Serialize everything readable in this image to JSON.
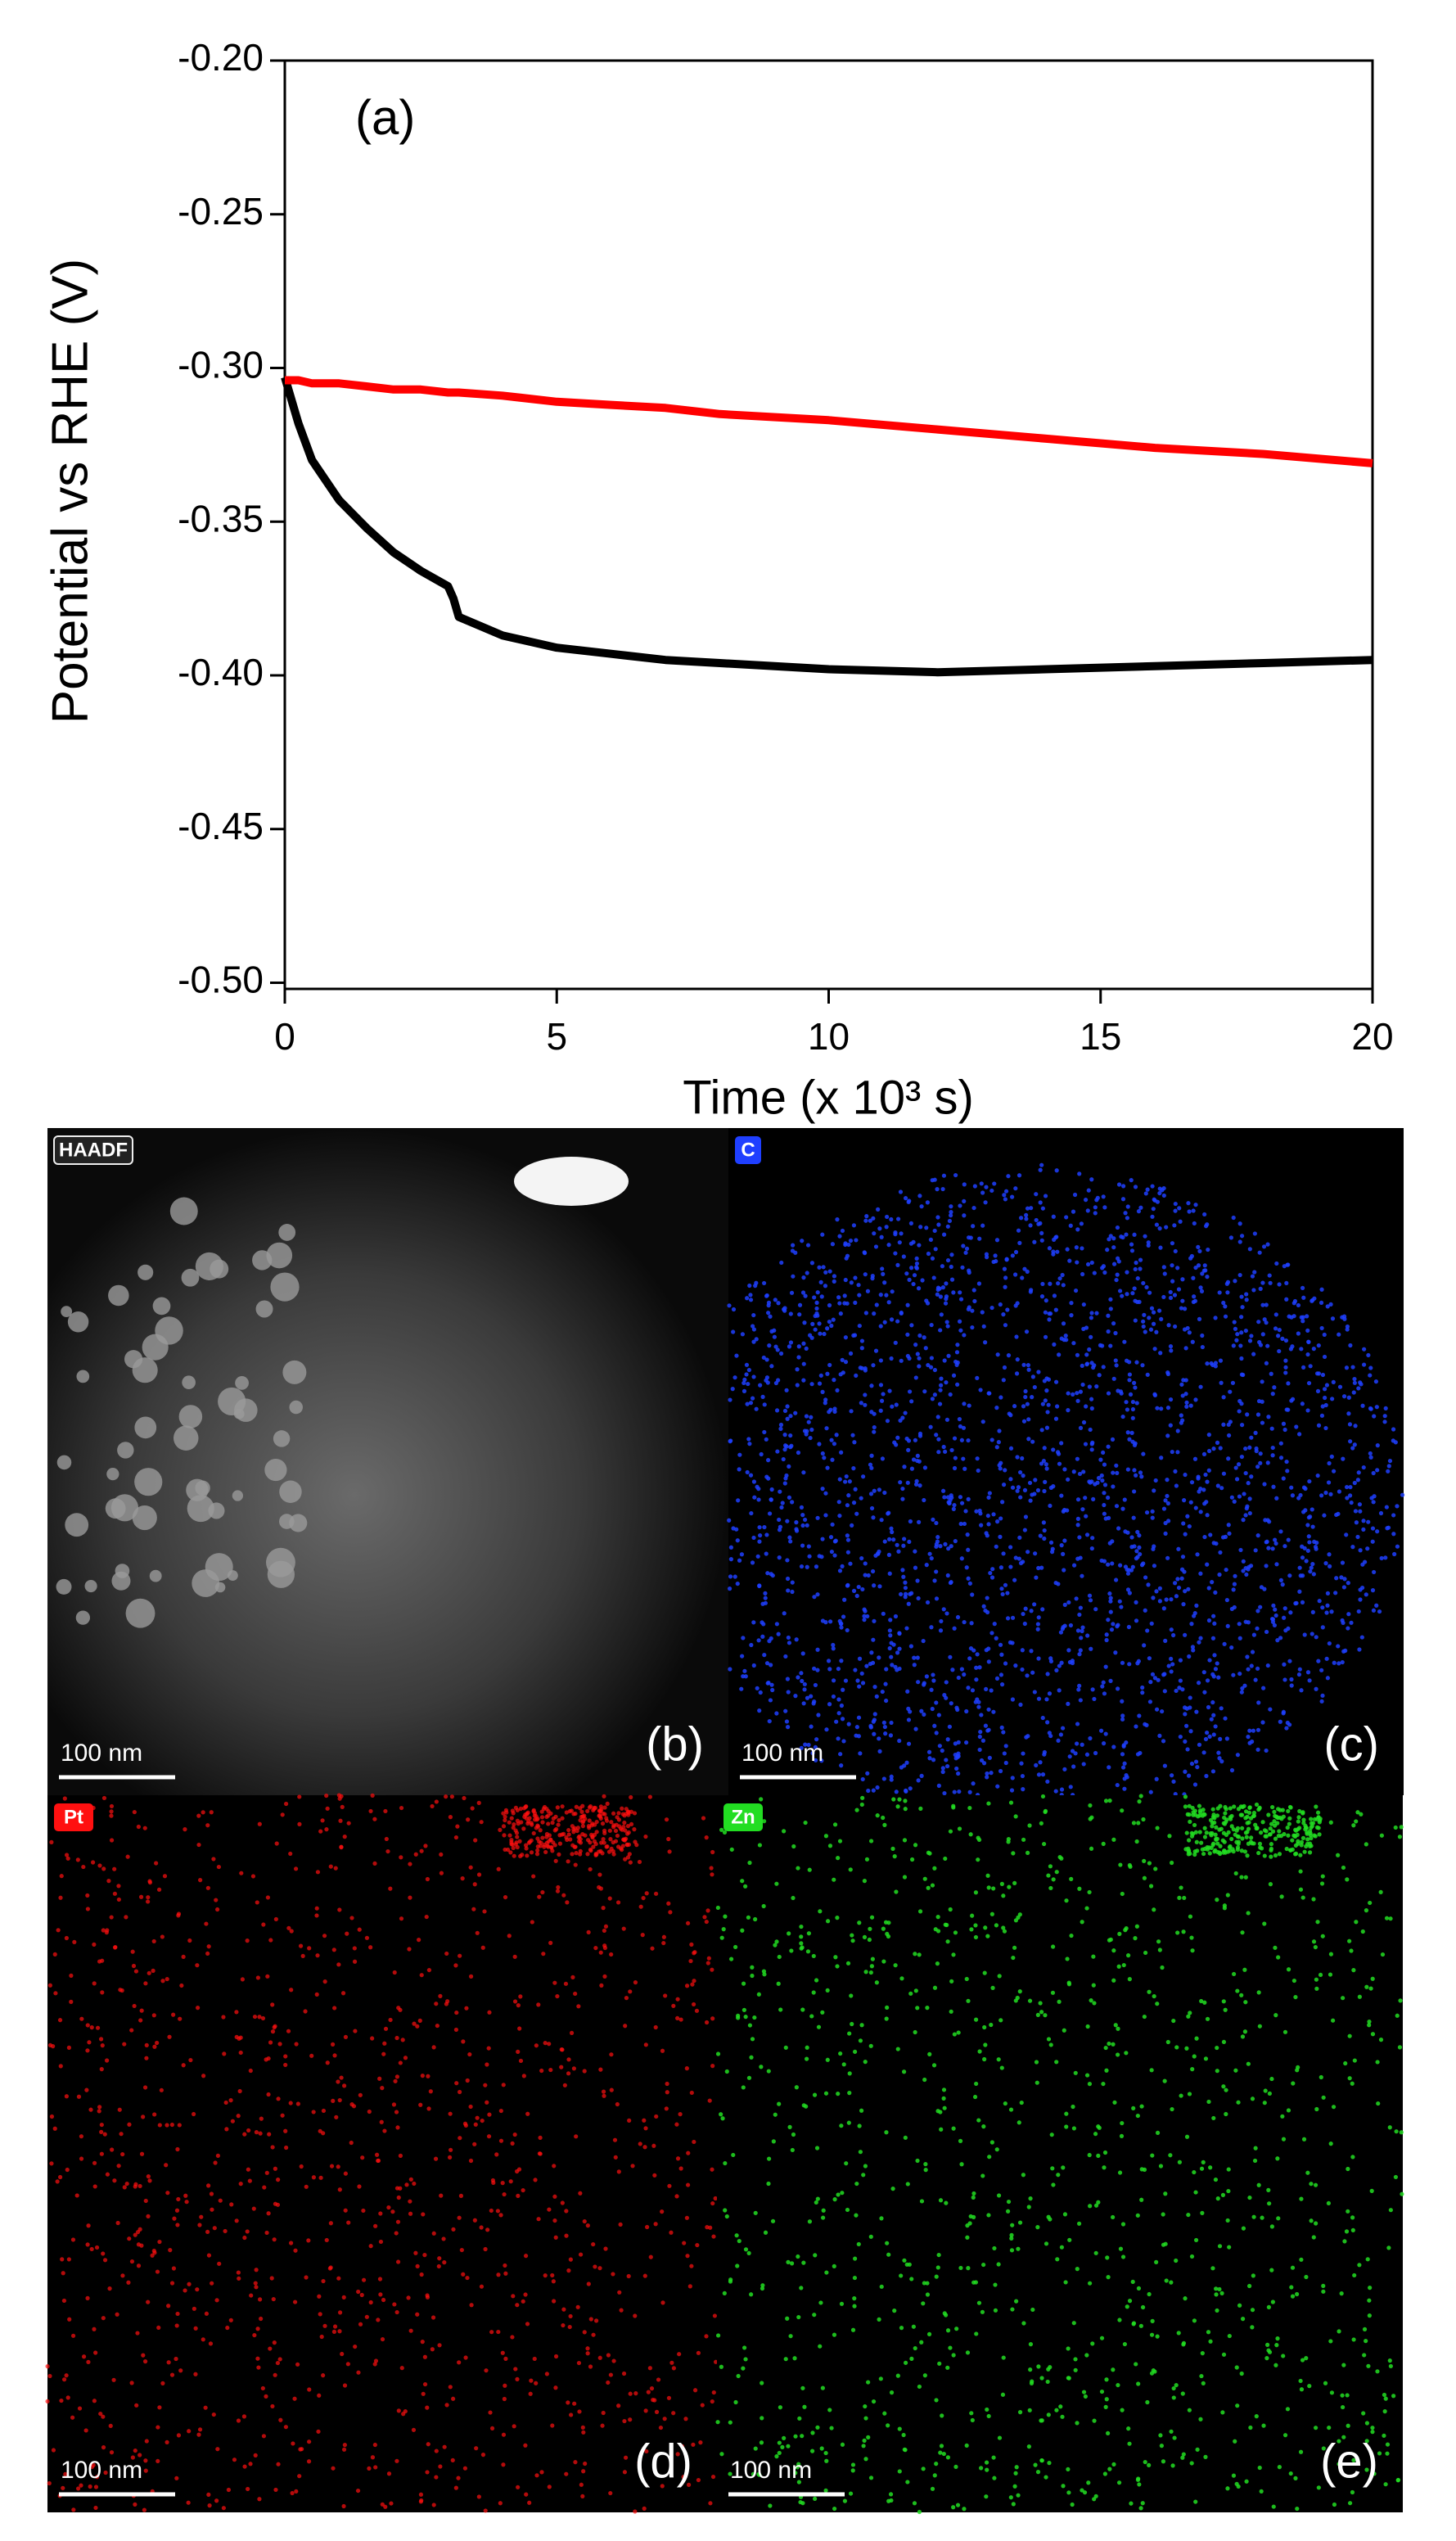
{
  "chart_data": {
    "type": "line",
    "panel_label": "(a)",
    "xlabel": "Time (x 10³ s)",
    "ylabel": "Potential vs RHE (V)",
    "x": [
      0,
      0.25,
      0.5,
      1,
      1.5,
      2,
      2.5,
      3,
      3.1,
      3.2,
      4,
      5,
      6,
      7,
      8,
      10,
      12,
      14,
      16,
      18,
      20
    ],
    "series": [
      {
        "color": "#000000",
        "values": [
          -0.303,
          -0.318,
          -0.33,
          -0.343,
          -0.352,
          -0.36,
          -0.366,
          -0.371,
          -0.375,
          -0.381,
          -0.387,
          -0.391,
          -0.393,
          -0.395,
          -0.396,
          -0.398,
          -0.399,
          -0.398,
          -0.397,
          -0.396,
          -0.395
        ]
      },
      {
        "color": "#ff0000",
        "values": [
          -0.304,
          -0.304,
          -0.305,
          -0.305,
          -0.306,
          -0.307,
          -0.307,
          -0.308,
          -0.308,
          -0.308,
          -0.309,
          -0.311,
          -0.312,
          -0.313,
          -0.315,
          -0.317,
          -0.32,
          -0.323,
          -0.326,
          -0.328,
          -0.331
        ]
      }
    ],
    "xlim": [
      0,
      20
    ],
    "xticks": [
      0,
      5,
      10,
      15,
      20
    ],
    "ylim": [
      -0.502,
      -0.2
    ],
    "yticks": [
      {
        "value": -0.2,
        "label": "-0.20"
      },
      -0.25,
      {
        "value": -0.3,
        "label": "-0.30"
      },
      -0.35,
      {
        "value": -0.4,
        "label": "-0.40"
      },
      -0.45,
      {
        "value": -0.5,
        "label": "-0.50"
      }
    ]
  },
  "panels": [
    {
      "tag": "HAADF",
      "color": "#d8d8d8",
      "label": "(b)",
      "scalebar": "100 nm"
    },
    {
      "tag": "C",
      "color": "#1f3fff",
      "label": "(c)",
      "scalebar": "100 nm"
    },
    {
      "tag": "Pt",
      "color": "#ff1010",
      "label": "(d)",
      "scalebar": "100 nm"
    },
    {
      "tag": "Zn",
      "color": "#22dd22",
      "label": "(e)",
      "scalebar": "100 nm"
    }
  ]
}
